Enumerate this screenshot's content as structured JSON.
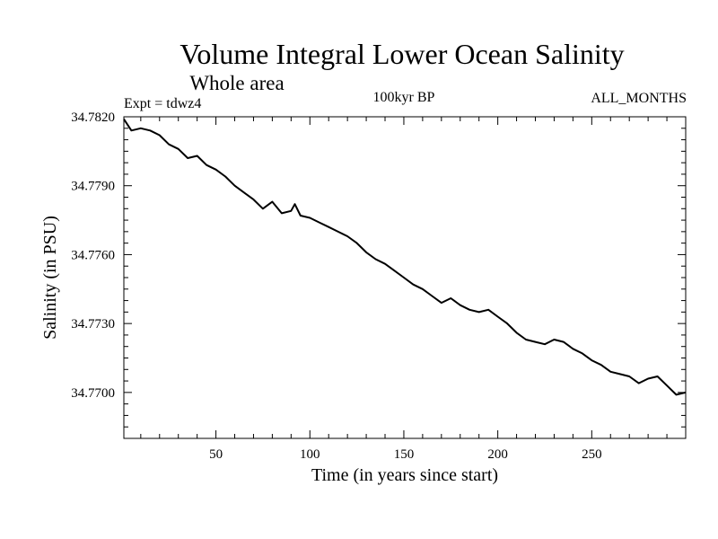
{
  "chart_data": {
    "type": "line",
    "title": "Volume Integral Lower Ocean Salinity",
    "subtitle": "Whole area",
    "experiment_label": "Expt = tdwz4",
    "period_label": "100kyr BP",
    "months_label": "ALL_MONTHS",
    "xlabel": "Time (in years since start)",
    "ylabel": "Salinity (in PSU)",
    "xlim": [
      1,
      300
    ],
    "ylim": [
      34.768,
      34.782
    ],
    "x_ticks": [
      50,
      100,
      150,
      200,
      250
    ],
    "x_tick_labels": [
      "50",
      "100",
      "150",
      "200",
      "250"
    ],
    "y_ticks": [
      34.77,
      34.773,
      34.776,
      34.779,
      34.782
    ],
    "y_tick_labels": [
      "34.7700",
      "34.7730",
      "34.7760",
      "34.7790",
      "34.7820"
    ],
    "grid": false,
    "line_color": "#000000",
    "series": [
      {
        "x": [
          1,
          5,
          10,
          15,
          20,
          25,
          30,
          35,
          40,
          45,
          50,
          55,
          60,
          65,
          70,
          75,
          80,
          85,
          90,
          92,
          95,
          100,
          105,
          110,
          115,
          120,
          125,
          130,
          135,
          140,
          145,
          150,
          155,
          160,
          165,
          170,
          175,
          180,
          185,
          190,
          195,
          200,
          205,
          210,
          215,
          220,
          225,
          230,
          235,
          240,
          245,
          250,
          255,
          260,
          265,
          270,
          275,
          280,
          285,
          290,
          295,
          300
        ],
        "y": [
          34.7819,
          34.7814,
          34.7815,
          34.7814,
          34.7812,
          34.7808,
          34.7806,
          34.7802,
          34.7803,
          34.7799,
          34.7797,
          34.7794,
          34.779,
          34.7787,
          34.7784,
          34.778,
          34.7783,
          34.7778,
          34.7779,
          34.7782,
          34.7777,
          34.7776,
          34.7774,
          34.7772,
          34.777,
          34.7768,
          34.7765,
          34.7761,
          34.7758,
          34.7756,
          34.7753,
          34.775,
          34.7747,
          34.7745,
          34.7742,
          34.7739,
          34.7741,
          34.7738,
          34.7736,
          34.7735,
          34.7736,
          34.7733,
          34.773,
          34.7726,
          34.7723,
          34.7722,
          34.7721,
          34.7723,
          34.7722,
          34.7719,
          34.7717,
          34.7714,
          34.7712,
          34.7709,
          34.7708,
          34.7707,
          34.7704,
          34.7706,
          34.7707,
          34.7703,
          34.7699,
          34.77
        ]
      }
    ]
  }
}
